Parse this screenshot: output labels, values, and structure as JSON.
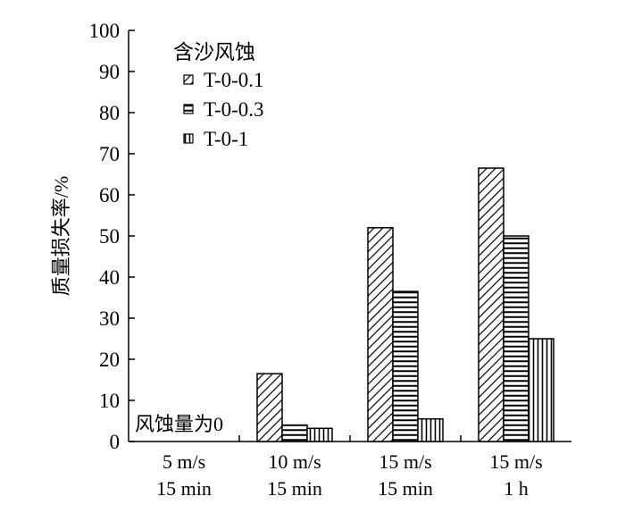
{
  "chart_data": {
    "type": "bar",
    "categories": [
      [
        "5 m/s",
        "15 min"
      ],
      [
        "10 m/s",
        "15 min"
      ],
      [
        "15 m/s",
        "15 min"
      ],
      [
        "15 m/s",
        "1 h"
      ]
    ],
    "series": [
      {
        "name": "T-0-0.1",
        "values": [
          0,
          16.5,
          52,
          66.5
        ]
      },
      {
        "name": "T-0-0.3",
        "values": [
          0,
          4,
          36.5,
          50
        ]
      },
      {
        "name": "T-0-1",
        "values": [
          0,
          3.2,
          5.5,
          25
        ]
      }
    ],
    "ylabel": "质量损失率/%",
    "ylim": [
      0,
      100
    ],
    "yticks": [
      0,
      10,
      20,
      30,
      40,
      50,
      60,
      70,
      80,
      90,
      100
    ],
    "legend": {
      "title": "含沙风蚀",
      "placement": "top-left"
    },
    "series_patterns": [
      "diagonal-hatch",
      "horizontal-lines",
      "vertical-lines"
    ],
    "annotations": [
      {
        "text": "风蚀量为0",
        "category_index": 0
      }
    ],
    "grid": false
  }
}
